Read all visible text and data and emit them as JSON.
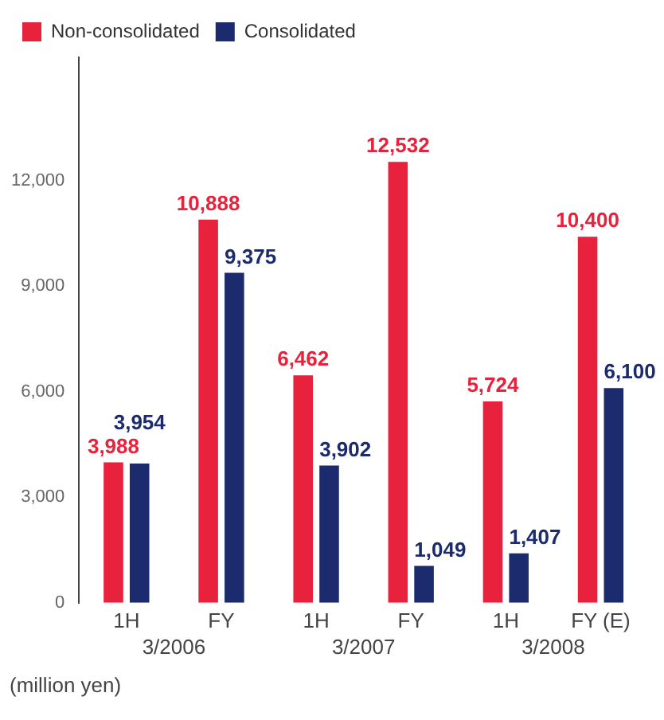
{
  "chart_data": {
    "type": "bar",
    "categories": [
      "1H",
      "FY",
      "1H",
      "FY",
      "1H",
      "FY (E)"
    ],
    "series": [
      {
        "name": "Non-consolidated",
        "color": "#e8213c",
        "values": [
          3988,
          10888,
          6462,
          12532,
          5724,
          10400
        ],
        "value_labels": [
          "3,988",
          "10,888",
          "6,462",
          "12,532",
          "5,724",
          "10,400"
        ]
      },
      {
        "name": "Consolidated",
        "color": "#1c2a6e",
        "values": [
          3954,
          9375,
          3902,
          1049,
          1407,
          6100
        ],
        "value_labels": [
          "3,954",
          "9,375",
          "3,902",
          "1,049",
          "1,407",
          "6,100"
        ]
      }
    ],
    "ylim": [
      0,
      15500
    ],
    "yticks": [
      0,
      {
        "value": 3000,
        "label": "3,000"
      },
      {
        "value": 6000,
        "label": "6,000"
      },
      {
        "value": 9000,
        "label": "9,000"
      },
      {
        "value": 12000,
        "label": "12,000"
      }
    ],
    "ylabel": "(million yen)",
    "annotations": [
      "3/2006",
      "3/2007",
      "3/2008"
    ],
    "grid": false,
    "legend": "top left"
  }
}
